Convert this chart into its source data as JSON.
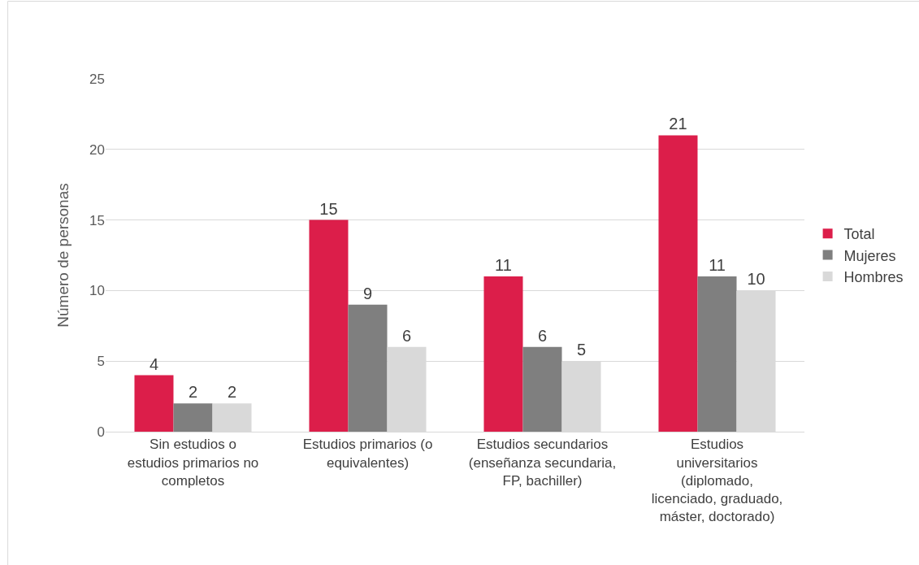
{
  "chart_data": {
    "type": "bar",
    "ylabel": "Número de personas",
    "categories": [
      "Sin estudios o estudios primarios no completos",
      "Estudios primarios (o equivalentes)",
      "Estudios secundarios (enseñanza secundaria, FP, bachiller)",
      "Estudios universitarios (diplomado, licenciado, graduado, máster, doctorado)"
    ],
    "series": [
      {
        "name": "Total",
        "color": "#dc1e4a",
        "values": [
          4,
          15,
          11,
          21
        ]
      },
      {
        "name": "Mujeres",
        "color": "#7f7f7f",
        "values": [
          2,
          9,
          6,
          11
        ]
      },
      {
        "name": "Hombres",
        "color": "#d9d9d9",
        "values": [
          2,
          6,
          5,
          10
        ]
      }
    ],
    "ylim": [
      0,
      25
    ],
    "yticks": [
      0,
      5,
      10,
      15,
      20,
      25
    ],
    "grid": "y",
    "legend": "right",
    "data_labels": true
  }
}
